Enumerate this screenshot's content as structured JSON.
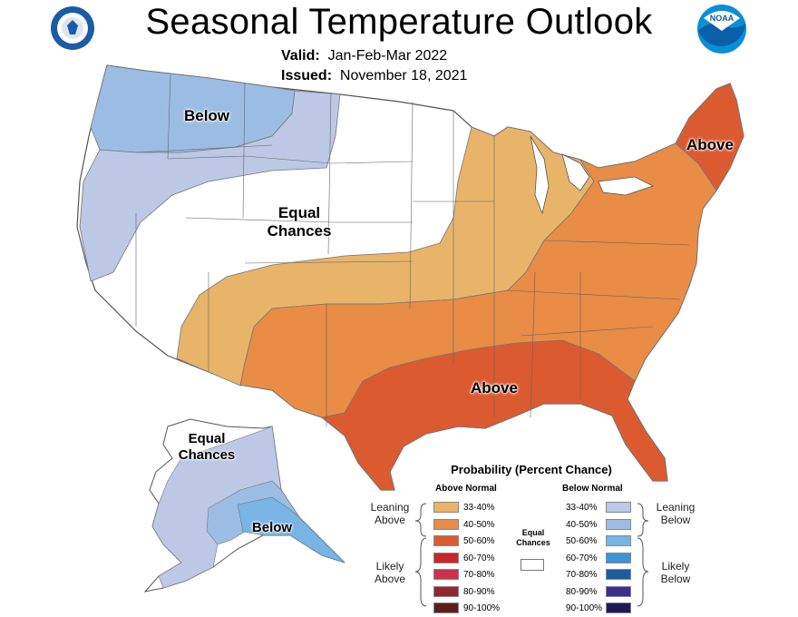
{
  "title": "Seasonal Temperature Outlook",
  "valid": {
    "label": "Valid:",
    "value": "Jan-Feb-Mar 2022"
  },
  "issued": {
    "label": "Issued:",
    "value": "November 18, 2021"
  },
  "map_labels": {
    "below_nw": "Below",
    "equal_chances": [
      "Equal",
      "Chances"
    ],
    "above_ne": "Above",
    "above_south": "Above",
    "alaska_equal": [
      "Equal",
      "Chances"
    ],
    "alaska_below": "Below"
  },
  "logos": {
    "left": "seal-logo",
    "right": "noaa-logo",
    "right_text": "NOAA"
  },
  "legend": {
    "title": "Probability (Percent Chance)",
    "above_header": "Above Normal",
    "below_header": "Below Normal",
    "equal_label": [
      "Equal",
      "Chances"
    ],
    "leaning_above": [
      "Leaning",
      "Above"
    ],
    "likely_above": [
      "Likely",
      "Above"
    ],
    "leaning_below": [
      "Leaning",
      "Below"
    ],
    "likely_below": [
      "Likely",
      "Below"
    ],
    "above": [
      {
        "pct": "33-40%",
        "color": "#e8b46a"
      },
      {
        "pct": "40-50%",
        "color": "#e88c46"
      },
      {
        "pct": "50-60%",
        "color": "#dc5a30"
      },
      {
        "pct": "60-70%",
        "color": "#c8282a"
      },
      {
        "pct": "70-80%",
        "color": "#d12f4e"
      },
      {
        "pct": "80-90%",
        "color": "#8c2a34"
      },
      {
        "pct": "90-100%",
        "color": "#5a1e1e"
      }
    ],
    "below": [
      {
        "pct": "33-40%",
        "color": "#bcc8e6"
      },
      {
        "pct": "40-50%",
        "color": "#9cbde3"
      },
      {
        "pct": "50-60%",
        "color": "#78b4e4"
      },
      {
        "pct": "60-70%",
        "color": "#3c94d8"
      },
      {
        "pct": "70-80%",
        "color": "#1a5ca6"
      },
      {
        "pct": "80-90%",
        "color": "#3a2e8e"
      },
      {
        "pct": "90-100%",
        "color": "#1e1a5a"
      }
    ]
  }
}
